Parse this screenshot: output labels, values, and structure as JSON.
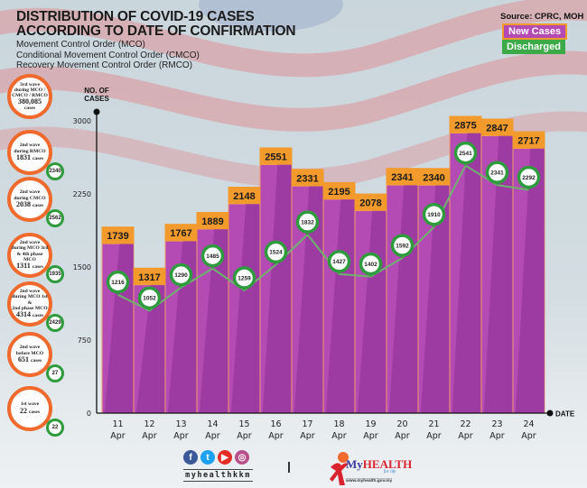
{
  "header": {
    "title_line1": "DISTRIBUTION OF COVID-19 CASES",
    "title_line2": "ACCORDING TO DATE OF CONFIRMATION",
    "subtitle": [
      "Movement Control Order (MCO)",
      "Conditional Movement Control Order (CMCO)",
      "Recovery Movement Control Order (RMCO)"
    ],
    "source": "Source: CPRC, MOH"
  },
  "legend": {
    "new_cases": "New Cases",
    "discharged": "Discharged"
  },
  "colors": {
    "bar": "#b44bb4",
    "bar_dark": "#8d2f95",
    "label_bg": "#f39a2d",
    "discharged": "#2e9b3d",
    "wave_ring": "#ef6a2c"
  },
  "waves": [
    {
      "line1": "3rd wave",
      "line2": "during MCO /",
      "line3": "CMCO / RMCO",
      "cases": "380,085",
      "unit": "cases",
      "discharged": null
    },
    {
      "line1": "2nd wave",
      "line2": "during RMCO",
      "line3": "",
      "cases": "1831",
      "unit": "cases",
      "discharged": "2340"
    },
    {
      "line1": "2nd wave",
      "line2": "during CMCO",
      "line3": "",
      "cases": "2038",
      "unit": "cases",
      "discharged": "2562"
    },
    {
      "line1": "2nd wave",
      "line2": "during MCO 3rd",
      "line3": "& 4th phase MCO",
      "cases": "1311",
      "unit": "cases",
      "discharged": "1935"
    },
    {
      "line1": "2nd wave",
      "line2": "during MCO 1st &",
      "line3": "2nd phase MCO",
      "cases": "4314",
      "unit": "cases",
      "discharged": "2429"
    },
    {
      "line1": "2nd wave",
      "line2": "before MCO",
      "line3": "",
      "cases": "651",
      "unit": "cases",
      "discharged": "27"
    },
    {
      "line1": "1st wave",
      "line2": "",
      "line3": "",
      "cases": "22",
      "unit": "cases",
      "discharged": "22"
    }
  ],
  "footer": {
    "handle": "myhealthkkm",
    "brand_my": "My",
    "brand_health": "HEALTH",
    "brand_tag": "for life",
    "url": "www.myhealth.gov.my",
    "social": [
      "f",
      "t",
      "▶",
      "◎"
    ]
  },
  "chart_data": {
    "type": "bar",
    "title": "DISTRIBUTION OF COVID-19 CASES ACCORDING TO DATE OF CONFIRMATION",
    "xlabel": "DATE",
    "ylabel": "NO. OF CASES",
    "ylim": [
      0,
      3000
    ],
    "yticks": [
      0,
      750,
      1500,
      2250,
      3000
    ],
    "grid": false,
    "legend_position": "top-right",
    "categories": [
      "11 Apr",
      "12 Apr",
      "13 Apr",
      "14 Apr",
      "15 Apr",
      "16 Apr",
      "17 Apr",
      "18 Apr",
      "19 Apr",
      "20 Apr",
      "21 Apr",
      "22 Apr",
      "23 Apr",
      "24 Apr"
    ],
    "series": [
      {
        "name": "New Cases",
        "type": "bar",
        "values": [
          1739,
          1317,
          1767,
          1889,
          2148,
          2551,
          2331,
          2195,
          2078,
          2341,
          2340,
          2875,
          2847,
          2717
        ]
      },
      {
        "name": "Discharged",
        "type": "line",
        "values": [
          1216,
          1052,
          1290,
          1485,
          1259,
          1524,
          1832,
          1427,
          1402,
          1592,
          1910,
          2541,
          2341,
          2292
        ]
      }
    ]
  }
}
